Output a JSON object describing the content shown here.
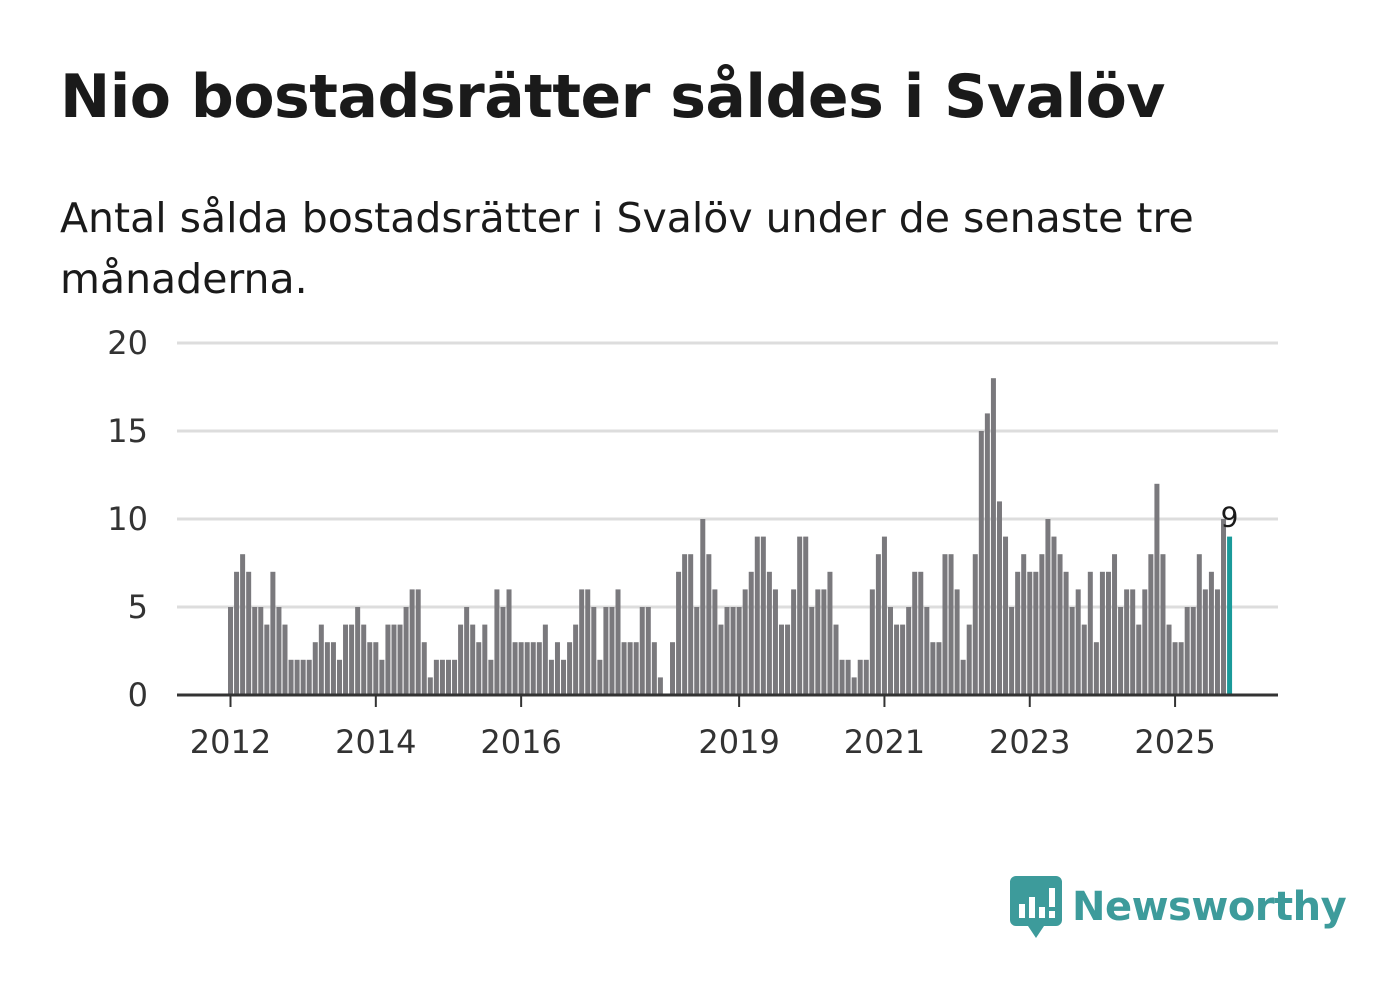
{
  "title": "Nio bostadsrätter såldes i Svalöv",
  "subtitle": "Antal sålda bostadsrätter i Svalöv under de senaste tre månaderna.",
  "brand": "Newsworthy",
  "colors": {
    "bar": "#7a797d",
    "highlight": "#1a9a9a",
    "grid": "#dddddd",
    "axis": "#333333",
    "brand": "#3d9b9b"
  },
  "chart_data": {
    "type": "bar",
    "title": "Nio bostadsrätter såldes i Svalöv",
    "xlabel": "",
    "ylabel": "",
    "ylim": [
      0,
      20
    ],
    "yticks": [
      0,
      5,
      10,
      15,
      20
    ],
    "grid": true,
    "first_period": "2012-01",
    "xtick_labels": [
      {
        "label": "2012",
        "index": 0
      },
      {
        "label": "2014",
        "index": 24
      },
      {
        "label": "2016",
        "index": 48
      },
      {
        "label": "2019",
        "index": 84
      },
      {
        "label": "2021",
        "index": 108
      },
      {
        "label": "2023",
        "index": 132
      },
      {
        "label": "2025",
        "index": 156
      }
    ],
    "highlight": {
      "index": 165,
      "label": "9"
    },
    "values": [
      5,
      7,
      8,
      7,
      5,
      5,
      4,
      7,
      5,
      4,
      2,
      2,
      2,
      2,
      3,
      4,
      3,
      3,
      2,
      4,
      4,
      5,
      4,
      3,
      3,
      2,
      4,
      4,
      4,
      5,
      6,
      6,
      3,
      1,
      2,
      2,
      2,
      2,
      4,
      5,
      4,
      3,
      4,
      2,
      6,
      5,
      6,
      3,
      3,
      3,
      3,
      3,
      4,
      2,
      3,
      2,
      3,
      4,
      6,
      6,
      5,
      2,
      5,
      5,
      6,
      3,
      3,
      3,
      5,
      5,
      3,
      1,
      0,
      3,
      7,
      8,
      8,
      5,
      10,
      8,
      6,
      4,
      5,
      5,
      5,
      6,
      7,
      9,
      9,
      7,
      6,
      4,
      4,
      6,
      9,
      9,
      5,
      6,
      6,
      7,
      4,
      2,
      2,
      1,
      2,
      2,
      6,
      8,
      9,
      5,
      4,
      4,
      5,
      7,
      7,
      5,
      3,
      3,
      8,
      8,
      6,
      2,
      4,
      8,
      15,
      16,
      18,
      11,
      9,
      5,
      7,
      8,
      7,
      7,
      8,
      10,
      9,
      8,
      7,
      5,
      6,
      4,
      7,
      3,
      7,
      7,
      8,
      5,
      6,
      6,
      4,
      6,
      8,
      12,
      8,
      4,
      3,
      3,
      5,
      5,
      8,
      6,
      7,
      6,
      10,
      9
    ]
  }
}
